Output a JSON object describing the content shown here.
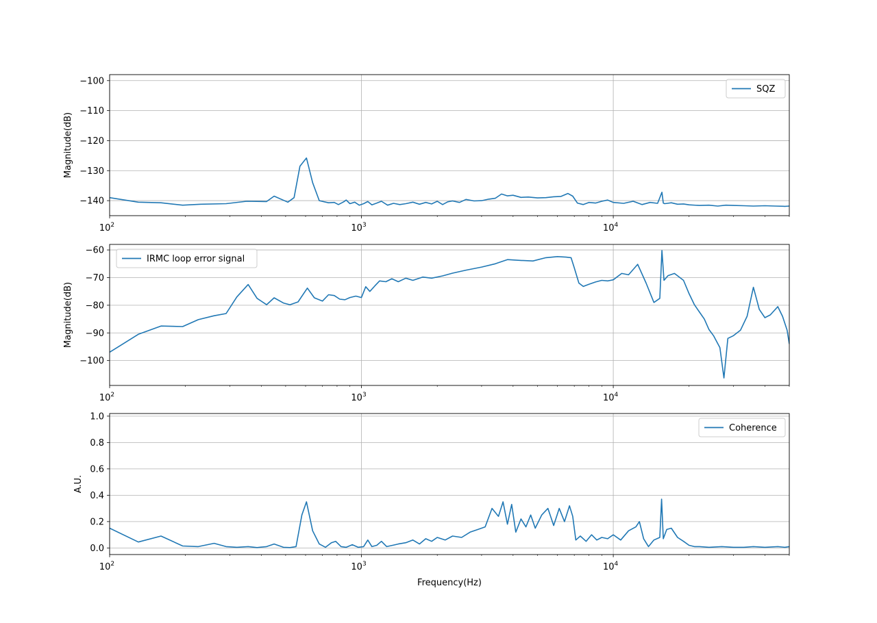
{
  "colors": {
    "series": "#1f77b4",
    "grid": "#b0b0b0",
    "axes": "#000000",
    "legend_border": "#cccccc"
  },
  "xlabel": "Frequency(Hz)",
  "chart_data": [
    {
      "type": "line",
      "xscale": "log",
      "xlim": [
        100,
        50000
      ],
      "ylim": [
        -145,
        -98
      ],
      "yticks": [
        -100,
        -110,
        -120,
        -130,
        -140
      ],
      "ytick_labels": [
        "−100",
        "−110",
        "−120",
        "−130",
        "−140"
      ],
      "xticks": [
        100,
        1000,
        10000
      ],
      "xtick_labels": [
        {
          "base": "10",
          "exp": "2"
        },
        {
          "base": "10",
          "exp": "3"
        },
        {
          "base": "10",
          "exp": "4"
        }
      ],
      "ylabel": "Magnitude(dB)",
      "grid": true,
      "legend": "upper right",
      "series": [
        {
          "name": "SQZ",
          "x": [
            100,
            130,
            160,
            195,
            230,
            290,
            350,
            420,
            450,
            510,
            540,
            570,
            605,
            640,
            680,
            740,
            780,
            810,
            850,
            870,
            900,
            940,
            980,
            1020,
            1060,
            1100,
            1150,
            1200,
            1270,
            1340,
            1420,
            1500,
            1600,
            1700,
            1800,
            1900,
            2000,
            2100,
            2200,
            2300,
            2450,
            2600,
            2800,
            3000,
            3200,
            3400,
            3600,
            3800,
            4000,
            4300,
            4600,
            5000,
            5400,
            5800,
            6200,
            6600,
            6900,
            7200,
            7600,
            8000,
            8500,
            9000,
            9500,
            10000,
            11000,
            12000,
            13000,
            14000,
            15000,
            15600,
            15800,
            16000,
            17000,
            18000,
            19000,
            20000,
            22000,
            24000,
            26000,
            28000,
            30000,
            33000,
            36000,
            40000,
            44000,
            48000,
            50000
          ],
          "y": [
            -139,
            -140.5,
            -140.7,
            -141.5,
            -141.2,
            -141,
            -140.2,
            -140.3,
            -138.5,
            -140.5,
            -139,
            -128.5,
            -125.8,
            -134,
            -140,
            -140.7,
            -140.6,
            -141.3,
            -140.4,
            -139.8,
            -141,
            -140.5,
            -141.5,
            -141,
            -140.3,
            -141.4,
            -140.8,
            -140.2,
            -141.5,
            -140.9,
            -141.3,
            -141,
            -140.5,
            -141.2,
            -140.6,
            -141.1,
            -140.2,
            -141.3,
            -140.4,
            -140.1,
            -140.6,
            -139.6,
            -140.1,
            -140,
            -139.5,
            -139.2,
            -137.8,
            -138.4,
            -138.2,
            -138.9,
            -138.8,
            -139.1,
            -139,
            -138.7,
            -138.6,
            -137.6,
            -138.5,
            -140.8,
            -141.3,
            -140.6,
            -140.8,
            -140.2,
            -139.8,
            -140.6,
            -140.9,
            -140.2,
            -141.3,
            -140.6,
            -140.9,
            -137.2,
            -140.8,
            -141,
            -140.7,
            -141.2,
            -141.1,
            -141.4,
            -141.6,
            -141.5,
            -141.8,
            -141.5,
            -141.6,
            -141.7,
            -141.8,
            -141.7,
            -141.8,
            -141.9,
            -141.8
          ]
        }
      ]
    },
    {
      "type": "line",
      "xscale": "log",
      "xlim": [
        100,
        50000
      ],
      "ylim": [
        -109,
        -58
      ],
      "yticks": [
        -60,
        -70,
        -80,
        -90,
        -100
      ],
      "ytick_labels": [
        "−60",
        "−70",
        "−80",
        "−90",
        "−100"
      ],
      "xticks": [
        100,
        1000,
        10000
      ],
      "xtick_labels": [
        {
          "base": "10",
          "exp": "2"
        },
        {
          "base": "10",
          "exp": "3"
        },
        {
          "base": "10",
          "exp": "4"
        }
      ],
      "ylabel": "Magnitude(dB)",
      "grid": true,
      "legend": "upper left",
      "series": [
        {
          "name": "IRMC loop error signal",
          "x": [
            100,
            130,
            160,
            195,
            225,
            260,
            290,
            320,
            355,
            385,
            420,
            450,
            490,
            520,
            560,
            610,
            650,
            700,
            740,
            780,
            820,
            860,
            900,
            950,
            1000,
            1040,
            1080,
            1130,
            1180,
            1250,
            1320,
            1400,
            1500,
            1600,
            1750,
            1900,
            2100,
            2300,
            2600,
            3000,
            3400,
            3800,
            4300,
            4800,
            5400,
            6000,
            6500,
            6800,
            7000,
            7300,
            7600,
            8000,
            8500,
            9000,
            9500,
            10000,
            10800,
            11500,
            12500,
            13500,
            14500,
            15300,
            15600,
            15900,
            16500,
            17500,
            19000,
            20000,
            21000,
            22000,
            23000,
            24000,
            25000,
            26500,
            27500,
            28500,
            30000,
            32000,
            34000,
            36000,
            38000,
            40000,
            42000,
            45000,
            47000,
            49000,
            50000
          ],
          "y": [
            -97,
            -90.5,
            -87.5,
            -87.7,
            -85.2,
            -83.8,
            -83,
            -77,
            -72.5,
            -77.5,
            -79.8,
            -77.3,
            -79.2,
            -79.8,
            -78.8,
            -73.8,
            -77.3,
            -78.5,
            -76.2,
            -76.5,
            -77.8,
            -78,
            -77.2,
            -76.7,
            -77.2,
            -73.3,
            -75,
            -73,
            -71.2,
            -71.5,
            -70.4,
            -71.5,
            -70.2,
            -71,
            -69.8,
            -70.2,
            -69.4,
            -68.4,
            -67.3,
            -66.2,
            -65,
            -63.5,
            -63.8,
            -64,
            -62.8,
            -62.4,
            -62.6,
            -62.8,
            -66.5,
            -72,
            -73.2,
            -72.4,
            -71.6,
            -71,
            -71.2,
            -70.8,
            -68.5,
            -69,
            -65.2,
            -72,
            -79,
            -77.5,
            -60.2,
            -71,
            -69.3,
            -68.5,
            -71,
            -75.8,
            -79.8,
            -82.5,
            -85,
            -88.8,
            -91,
            -95.3,
            -106.3,
            -92,
            -91,
            -89,
            -84,
            -73.5,
            -81.5,
            -84.5,
            -83.5,
            -80.5,
            -84,
            -89,
            -94
          ]
        }
      ]
    },
    {
      "type": "line",
      "xscale": "log",
      "xlim": [
        100,
        50000
      ],
      "ylim": [
        -0.05,
        1.02
      ],
      "yticks": [
        0.0,
        0.2,
        0.4,
        0.6,
        0.8,
        1.0
      ],
      "ytick_labels": [
        "0.0",
        "0.2",
        "0.4",
        "0.6",
        "0.8",
        "1.0"
      ],
      "xticks": [
        100,
        1000,
        10000
      ],
      "xtick_labels": [
        {
          "base": "10",
          "exp": "2"
        },
        {
          "base": "10",
          "exp": "3"
        },
        {
          "base": "10",
          "exp": "4"
        }
      ],
      "ylabel": "A.U.",
      "xlabel": "Frequency(Hz)",
      "grid": true,
      "legend": "upper right",
      "series": [
        {
          "name": "Coherence",
          "x": [
            100,
            130,
            160,
            195,
            225,
            260,
            290,
            320,
            355,
            385,
            420,
            450,
            490,
            520,
            550,
            580,
            605,
            640,
            680,
            720,
            760,
            790,
            830,
            870,
            920,
            970,
            1020,
            1060,
            1100,
            1150,
            1200,
            1260,
            1330,
            1400,
            1500,
            1600,
            1700,
            1800,
            1900,
            2000,
            2150,
            2300,
            2500,
            2700,
            2900,
            3100,
            3300,
            3500,
            3650,
            3800,
            3950,
            4100,
            4300,
            4500,
            4700,
            4900,
            5200,
            5500,
            5800,
            6100,
            6400,
            6700,
            6900,
            7100,
            7400,
            7800,
            8200,
            8600,
            9000,
            9500,
            10000,
            10700,
            11500,
            12300,
            12700,
            13200,
            13800,
            14500,
            15300,
            15550,
            15800,
            16300,
            17000,
            18000,
            19000,
            20000,
            21000,
            22000,
            24000,
            27000,
            30000,
            33000,
            36000,
            40000,
            45000,
            48000,
            50000
          ],
          "y": [
            0.15,
            0.045,
            0.09,
            0.015,
            0.01,
            0.035,
            0.01,
            0.005,
            0.01,
            0.003,
            0.01,
            0.03,
            0.005,
            0.003,
            0.01,
            0.25,
            0.35,
            0.13,
            0.03,
            0.005,
            0.04,
            0.05,
            0.01,
            0.005,
            0.025,
            0.005,
            0.01,
            0.06,
            0.01,
            0.02,
            0.05,
            0.01,
            0.02,
            0.03,
            0.04,
            0.06,
            0.03,
            0.07,
            0.05,
            0.08,
            0.06,
            0.09,
            0.08,
            0.12,
            0.14,
            0.16,
            0.3,
            0.24,
            0.35,
            0.18,
            0.33,
            0.12,
            0.22,
            0.16,
            0.25,
            0.15,
            0.25,
            0.3,
            0.17,
            0.3,
            0.2,
            0.32,
            0.24,
            0.06,
            0.09,
            0.05,
            0.1,
            0.06,
            0.08,
            0.07,
            0.1,
            0.06,
            0.13,
            0.16,
            0.2,
            0.07,
            0.01,
            0.06,
            0.08,
            0.37,
            0.07,
            0.14,
            0.15,
            0.08,
            0.05,
            0.02,
            0.01,
            0.01,
            0.005,
            0.01,
            0.005,
            0.005,
            0.01,
            0.005,
            0.01,
            0.005,
            0.01
          ]
        }
      ]
    }
  ]
}
